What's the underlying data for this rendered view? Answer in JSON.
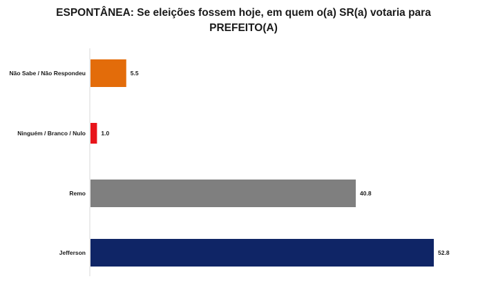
{
  "chart_data": {
    "type": "bar",
    "orientation": "horizontal",
    "title_line1": "ESPONTÂNEA: Se eleições fossem hoje, em quem o(a) SR(a) votaria para",
    "title_line2": "PREFEITO(A)",
    "categories": [
      "Não Sabe / Não Respondeu",
      "Ninguém / Branco / Nulo",
      "Remo",
      "Jefferson"
    ],
    "values": [
      5.5,
      1.0,
      40.8,
      52.8
    ],
    "value_labels": [
      "5.5",
      "1.0",
      "40.8",
      "52.8"
    ],
    "colors": [
      "#E36C0A",
      "#E8141A",
      "#7F7F7F",
      "#0F2566"
    ],
    "xlim": [
      0,
      52.8
    ],
    "grid": false,
    "legend": "none"
  }
}
